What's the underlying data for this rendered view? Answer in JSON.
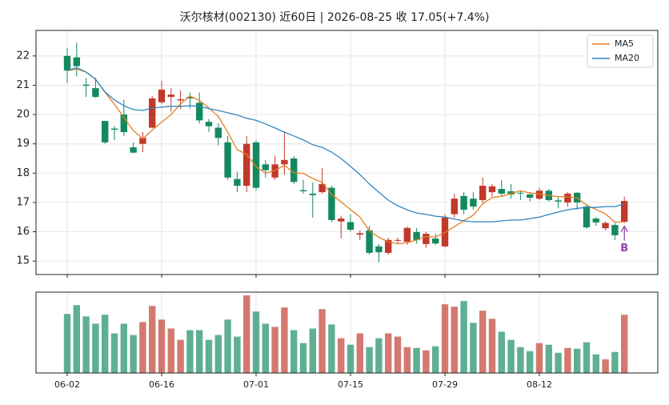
{
  "chart_data": {
    "type": "candlestick",
    "title": "沃尔核材(002130) 近60日  |  2026-08-25 收 17.05(+7.4%)",
    "categories": [
      "06-02",
      null,
      null,
      null,
      null,
      null,
      null,
      null,
      null,
      null,
      "06-16",
      null,
      null,
      null,
      null,
      null,
      null,
      null,
      null,
      null,
      "07-01",
      null,
      null,
      null,
      null,
      null,
      null,
      null,
      null,
      null,
      "07-15",
      null,
      null,
      null,
      null,
      null,
      null,
      null,
      null,
      null,
      "07-29",
      null,
      null,
      null,
      null,
      null,
      null,
      null,
      null,
      null,
      "08-12",
      null,
      null,
      null,
      null,
      null,
      null,
      null,
      null,
      null
    ],
    "open": [
      22.0,
      21.95,
      21.02,
      20.9,
      19.78,
      19.52,
      20.0,
      18.88,
      19.0,
      19.55,
      20.42,
      20.6,
      20.48,
      20.6,
      20.4,
      19.75,
      19.55,
      19.05,
      17.8,
      17.57,
      19.05,
      18.3,
      17.85,
      18.3,
      18.5,
      17.42,
      17.3,
      17.35,
      17.5,
      16.35,
      16.33,
      15.9,
      16.05,
      15.5,
      15.28,
      15.7,
      15.66,
      15.99,
      15.58,
      15.77,
      15.5,
      16.6,
      17.22,
      17.13,
      17.08,
      17.35,
      17.46,
      17.38,
      17.33,
      17.27,
      17.13,
      17.4,
      17.07,
      17.0,
      17.33,
      16.86,
      16.45,
      16.12,
      16.23,
      16.34
    ],
    "high": [
      22.27,
      22.45,
      21.25,
      21.25,
      19.78,
      19.6,
      20.5,
      19.05,
      19.4,
      20.63,
      21.15,
      20.9,
      20.82,
      20.75,
      20.75,
      19.85,
      19.7,
      19.27,
      18.05,
      19.27,
      19.13,
      18.45,
      18.6,
      19.4,
      18.58,
      17.77,
      17.68,
      18.17,
      17.57,
      16.55,
      16.6,
      16.05,
      16.2,
      15.58,
      15.8,
      15.8,
      16.18,
      16.13,
      16.0,
      15.93,
      16.6,
      17.3,
      17.35,
      17.35,
      17.85,
      17.63,
      17.77,
      17.63,
      17.4,
      17.35,
      17.5,
      17.46,
      17.2,
      17.35,
      17.35,
      16.95,
      16.5,
      16.35,
      16.3,
      17.2
    ],
    "low": [
      21.07,
      21.3,
      20.6,
      20.57,
      19.0,
      19.13,
      19.27,
      18.67,
      18.72,
      19.55,
      20.35,
      20.1,
      20.2,
      20.2,
      19.7,
      19.4,
      18.95,
      17.77,
      17.35,
      17.35,
      17.4,
      17.85,
      17.77,
      17.95,
      17.63,
      17.3,
      16.48,
      17.3,
      16.33,
      15.77,
      16.0,
      15.72,
      15.22,
      14.95,
      15.22,
      15.6,
      15.55,
      15.6,
      15.45,
      15.55,
      15.47,
      16.48,
      16.6,
      16.75,
      17.0,
      17.2,
      17.2,
      17.13,
      17.08,
      17.03,
      17.08,
      17.03,
      16.8,
      16.86,
      16.75,
      16.1,
      16.2,
      16.05,
      15.72,
      16.3
    ],
    "close": [
      21.5,
      21.65,
      20.98,
      20.6,
      19.05,
      19.48,
      19.4,
      18.7,
      19.2,
      20.55,
      20.85,
      20.68,
      20.52,
      20.55,
      19.8,
      19.6,
      19.2,
      17.85,
      17.57,
      19.0,
      17.5,
      18.1,
      18.3,
      18.45,
      17.7,
      17.38,
      17.25,
      17.63,
      16.4,
      16.45,
      16.07,
      15.95,
      15.28,
      15.3,
      15.72,
      15.72,
      16.13,
      15.72,
      15.93,
      15.6,
      16.48,
      17.13,
      16.75,
      16.86,
      17.57,
      17.55,
      17.3,
      17.27,
      17.31,
      17.16,
      17.4,
      17.08,
      17.03,
      17.3,
      17.0,
      16.15,
      16.32,
      16.3,
      15.88,
      17.05
    ],
    "volume": [
      73,
      84,
      70,
      61,
      72,
      49,
      61,
      47,
      63,
      83,
      66,
      55,
      41,
      53,
      53,
      41,
      47,
      66,
      45,
      96,
      76,
      61,
      57,
      81,
      53,
      37,
      55,
      79,
      60,
      43,
      35,
      49,
      32,
      43,
      49,
      45,
      32,
      31,
      28,
      33,
      85,
      82,
      89,
      62,
      77,
      67,
      51,
      41,
      32,
      27,
      37,
      35,
      25,
      31,
      30,
      38,
      23,
      17,
      26,
      72
    ],
    "volume_ylim": [
      0,
      100
    ],
    "up_color": "#c0392b",
    "down_color": "#138a5e",
    "series": [
      {
        "name": "MA5",
        "color": "#e67e22",
        "values": [
          21.5,
          21.55,
          21.45,
          21.2,
          20.76,
          20.35,
          19.9,
          19.45,
          19.17,
          19.47,
          19.74,
          20.0,
          20.36,
          20.63,
          20.48,
          20.23,
          19.93,
          19.4,
          18.8,
          18.64,
          18.22,
          18.0,
          18.09,
          18.27,
          18.01,
          17.99,
          17.82,
          17.68,
          17.27,
          17.02,
          16.76,
          16.5,
          16.03,
          15.81,
          15.66,
          15.59,
          15.63,
          15.72,
          15.84,
          15.82,
          15.97,
          16.17,
          16.38,
          16.56,
          16.96,
          17.17,
          17.21,
          17.31,
          17.4,
          17.32,
          17.29,
          17.24,
          17.2,
          17.19,
          17.16,
          16.91,
          16.76,
          16.61,
          16.33,
          16.34
        ]
      },
      {
        "name": "MA20",
        "color": "#2e86c1",
        "values": [
          21.5,
          21.6,
          21.45,
          21.2,
          20.77,
          20.5,
          20.3,
          20.17,
          20.14,
          20.22,
          20.25,
          20.28,
          20.28,
          20.3,
          20.28,
          20.2,
          20.14,
          20.06,
          19.98,
          19.87,
          19.8,
          19.68,
          19.54,
          19.4,
          19.27,
          19.13,
          18.97,
          18.88,
          18.72,
          18.5,
          18.23,
          17.95,
          17.63,
          17.35,
          17.08,
          16.89,
          16.75,
          16.64,
          16.59,
          16.53,
          16.5,
          16.43,
          16.37,
          16.34,
          16.34,
          16.34,
          16.37,
          16.4,
          16.4,
          16.45,
          16.5,
          16.59,
          16.67,
          16.75,
          16.8,
          16.83,
          16.83,
          16.86,
          16.86,
          16.95
        ]
      }
    ],
    "ylim": [
      14.54,
      22.87
    ],
    "yticks": [
      15,
      16,
      17,
      18,
      19,
      20,
      21,
      22
    ],
    "grid": true,
    "legend": "upper right",
    "annotation": {
      "text": "B",
      "color": "#8e44ad"
    }
  }
}
